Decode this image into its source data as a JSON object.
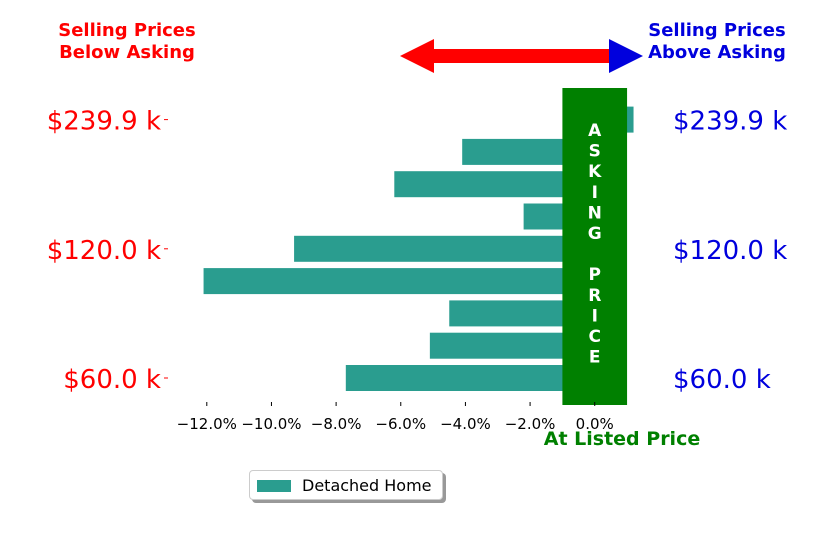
{
  "chart_data": {
    "type": "bar",
    "orientation": "horizontal",
    "series": [
      {
        "name": "Detached Home",
        "values": [
          -7.7,
          -5.1,
          -4.5,
          -12.1,
          -9.3,
          -2.2,
          -6.2,
          -4.1,
          1.2
        ]
      }
    ],
    "xlim": [
      -13.2,
      1.4
    ],
    "x_ticks": [
      -12,
      -10,
      -8,
      -6,
      -4,
      -2,
      0
    ],
    "x_tick_labels": [
      "−12.0%",
      "−10.0%",
      "−8.0%",
      "−6.0%",
      "−4.0%",
      "−2.0%",
      "0.0%"
    ],
    "y_tick_labels_left": [
      {
        "index": 0,
        "label": "$60.0 k"
      },
      {
        "index": 4,
        "label": "$120.0 k"
      },
      {
        "index": 8,
        "label": "$239.9 k"
      }
    ],
    "y_tick_labels_right": [
      {
        "index": 0,
        "label": "$60.0 k"
      },
      {
        "index": 4,
        "label": "$120.0 k"
      },
      {
        "index": 8,
        "label": "$239.9 k"
      }
    ],
    "header_below": [
      "Selling Prices",
      "Below Asking"
    ],
    "header_above": [
      "Selling Prices",
      "Above Asking"
    ],
    "asking_band_label": [
      "A",
      "S",
      "K",
      "I",
      "N",
      "G",
      "",
      "P",
      "R",
      "I",
      "C",
      "E"
    ],
    "at_listed_label": "At Listed Price",
    "legend": "bottom-center",
    "grid": false
  },
  "colors": {
    "bar": "#2a9d8f",
    "below": "#ff0000",
    "above": "#0000dd",
    "asking": "#008000"
  }
}
